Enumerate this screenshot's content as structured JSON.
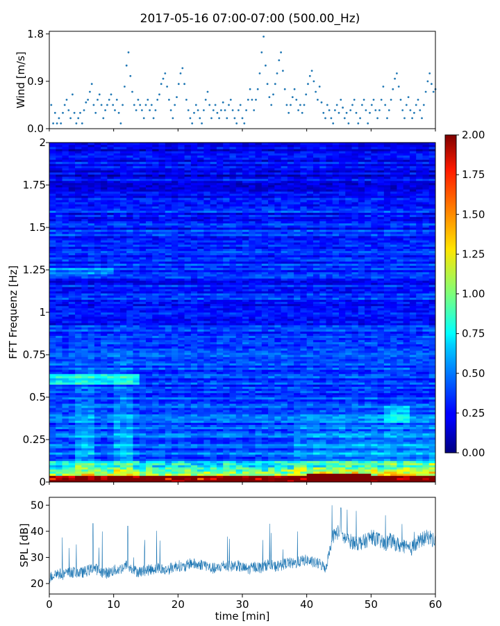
{
  "chart_data": [
    {
      "type": "scatter",
      "title": "2017-05-16 07:00-07:00 (500.00_Hz)",
      "xlabel": "",
      "ylabel": "Wind [m/s]",
      "xlim": [
        0,
        60
      ],
      "ylim": [
        0,
        1.85
      ],
      "yticks": [
        "0.0",
        "0.9",
        "1.8"
      ],
      "color": "#1f77b4",
      "points": [
        [
          0.3,
          0.45
        ],
        [
          0.6,
          0.1
        ],
        [
          0.9,
          0.3
        ],
        [
          1.2,
          0.1
        ],
        [
          1.5,
          0.2
        ],
        [
          1.8,
          0.1
        ],
        [
          2.1,
          0.3
        ],
        [
          2.4,
          0.45
        ],
        [
          2.7,
          0.55
        ],
        [
          3.0,
          0.35
        ],
        [
          3.3,
          0.2
        ],
        [
          3.6,
          0.65
        ],
        [
          3.9,
          0.3
        ],
        [
          4.2,
          0.1
        ],
        [
          4.5,
          0.2
        ],
        [
          4.8,
          0.3
        ],
        [
          5.1,
          0.1
        ],
        [
          5.4,
          0.35
        ],
        [
          5.7,
          0.5
        ],
        [
          6.0,
          0.55
        ],
        [
          6.3,
          0.7
        ],
        [
          6.6,
          0.85
        ],
        [
          6.9,
          0.45
        ],
        [
          7.2,
          0.3
        ],
        [
          7.5,
          0.55
        ],
        [
          7.8,
          0.65
        ],
        [
          8.1,
          0.45
        ],
        [
          8.4,
          0.2
        ],
        [
          8.7,
          0.35
        ],
        [
          9.0,
          0.45
        ],
        [
          9.3,
          0.55
        ],
        [
          9.6,
          0.65
        ],
        [
          9.9,
          0.45
        ],
        [
          10.2,
          0.35
        ],
        [
          10.5,
          0.55
        ],
        [
          10.8,
          0.3
        ],
        [
          11.1,
          0.1
        ],
        [
          11.4,
          0.45
        ],
        [
          11.7,
          0.8
        ],
        [
          12.0,
          1.2
        ],
        [
          12.3,
          1.45
        ],
        [
          12.6,
          1.0
        ],
        [
          12.9,
          0.7
        ],
        [
          13.2,
          0.45
        ],
        [
          13.5,
          0.35
        ],
        [
          13.8,
          0.55
        ],
        [
          14.1,
          0.45
        ],
        [
          14.4,
          0.35
        ],
        [
          14.7,
          0.2
        ],
        [
          15.0,
          0.45
        ],
        [
          15.3,
          0.55
        ],
        [
          15.6,
          0.35
        ],
        [
          15.9,
          0.45
        ],
        [
          16.2,
          0.2
        ],
        [
          16.5,
          0.35
        ],
        [
          16.8,
          0.55
        ],
        [
          17.1,
          0.65
        ],
        [
          17.4,
          0.85
        ],
        [
          17.7,
          0.95
        ],
        [
          18.0,
          1.05
        ],
        [
          18.3,
          0.8
        ],
        [
          18.6,
          0.55
        ],
        [
          18.9,
          0.35
        ],
        [
          19.2,
          0.2
        ],
        [
          19.5,
          0.45
        ],
        [
          19.8,
          0.6
        ],
        [
          20.1,
          0.85
        ],
        [
          20.4,
          1.05
        ],
        [
          20.7,
          1.15
        ],
        [
          21.0,
          0.85
        ],
        [
          21.3,
          0.55
        ],
        [
          21.6,
          0.35
        ],
        [
          21.9,
          0.2
        ],
        [
          22.2,
          0.1
        ],
        [
          22.5,
          0.3
        ],
        [
          22.8,
          0.45
        ],
        [
          23.1,
          0.35
        ],
        [
          23.4,
          0.2
        ],
        [
          23.7,
          0.1
        ],
        [
          24.0,
          0.35
        ],
        [
          24.3,
          0.55
        ],
        [
          24.6,
          0.7
        ],
        [
          24.9,
          0.45
        ],
        [
          25.2,
          0.2
        ],
        [
          25.5,
          0.35
        ],
        [
          25.8,
          0.45
        ],
        [
          26.1,
          0.3
        ],
        [
          26.4,
          0.2
        ],
        [
          26.7,
          0.35
        ],
        [
          27.0,
          0.5
        ],
        [
          27.3,
          0.35
        ],
        [
          27.6,
          0.2
        ],
        [
          27.9,
          0.45
        ],
        [
          28.2,
          0.55
        ],
        [
          28.5,
          0.35
        ],
        [
          28.8,
          0.2
        ],
        [
          29.1,
          0.1
        ],
        [
          29.4,
          0.35
        ],
        [
          29.7,
          0.45
        ],
        [
          30.0,
          0.2
        ],
        [
          30.3,
          0.1
        ],
        [
          30.6,
          0.35
        ],
        [
          30.9,
          0.55
        ],
        [
          31.2,
          0.75
        ],
        [
          31.5,
          0.55
        ],
        [
          31.8,
          0.35
        ],
        [
          32.1,
          0.55
        ],
        [
          32.4,
          0.75
        ],
        [
          32.7,
          1.05
        ],
        [
          33.0,
          1.45
        ],
        [
          33.3,
          1.75
        ],
        [
          33.6,
          1.2
        ],
        [
          33.9,
          0.85
        ],
        [
          34.2,
          0.6
        ],
        [
          34.5,
          0.45
        ],
        [
          34.8,
          0.65
        ],
        [
          35.1,
          0.85
        ],
        [
          35.4,
          1.05
        ],
        [
          35.7,
          1.3
        ],
        [
          36.0,
          1.45
        ],
        [
          36.3,
          1.1
        ],
        [
          36.6,
          0.75
        ],
        [
          36.9,
          0.45
        ],
        [
          37.2,
          0.3
        ],
        [
          37.5,
          0.45
        ],
        [
          37.8,
          0.6
        ],
        [
          38.1,
          0.75
        ],
        [
          38.4,
          0.55
        ],
        [
          38.7,
          0.35
        ],
        [
          39.0,
          0.45
        ],
        [
          39.3,
          0.3
        ],
        [
          39.6,
          0.45
        ],
        [
          39.9,
          0.65
        ],
        [
          40.2,
          0.85
        ],
        [
          40.5,
          1.0
        ],
        [
          40.8,
          1.1
        ],
        [
          41.1,
          0.9
        ],
        [
          41.4,
          0.7
        ],
        [
          41.7,
          0.55
        ],
        [
          42.0,
          0.8
        ],
        [
          42.3,
          0.5
        ],
        [
          42.6,
          0.3
        ],
        [
          42.9,
          0.2
        ],
        [
          43.2,
          0.45
        ],
        [
          43.5,
          0.35
        ],
        [
          43.8,
          0.2
        ],
        [
          44.1,
          0.1
        ],
        [
          44.4,
          0.35
        ],
        [
          44.7,
          0.45
        ],
        [
          45.0,
          0.3
        ],
        [
          45.3,
          0.55
        ],
        [
          45.6,
          0.4
        ],
        [
          45.9,
          0.2
        ],
        [
          46.2,
          0.3
        ],
        [
          46.5,
          0.1
        ],
        [
          46.8,
          0.35
        ],
        [
          47.1,
          0.45
        ],
        [
          47.4,
          0.55
        ],
        [
          47.7,
          0.3
        ],
        [
          48.0,
          0.1
        ],
        [
          48.3,
          0.2
        ],
        [
          48.6,
          0.45
        ],
        [
          48.9,
          0.55
        ],
        [
          49.2,
          0.35
        ],
        [
          49.5,
          0.1
        ],
        [
          49.8,
          0.3
        ],
        [
          50.1,
          0.45
        ],
        [
          50.4,
          0.55
        ],
        [
          50.7,
          0.35
        ],
        [
          51.0,
          0.2
        ],
        [
          51.3,
          0.35
        ],
        [
          51.6,
          0.55
        ],
        [
          51.9,
          0.8
        ],
        [
          52.2,
          0.45
        ],
        [
          52.5,
          0.2
        ],
        [
          52.8,
          0.35
        ],
        [
          53.1,
          0.55
        ],
        [
          53.4,
          0.75
        ],
        [
          53.7,
          0.95
        ],
        [
          54.0,
          1.05
        ],
        [
          54.3,
          0.8
        ],
        [
          54.6,
          0.55
        ],
        [
          54.9,
          0.35
        ],
        [
          55.2,
          0.2
        ],
        [
          55.5,
          0.45
        ],
        [
          55.8,
          0.6
        ],
        [
          56.1,
          0.35
        ],
        [
          56.4,
          0.2
        ],
        [
          56.7,
          0.3
        ],
        [
          57.0,
          0.45
        ],
        [
          57.3,
          0.55
        ],
        [
          57.6,
          0.35
        ],
        [
          57.9,
          0.2
        ],
        [
          58.2,
          0.45
        ],
        [
          58.5,
          0.7
        ],
        [
          58.8,
          0.9
        ],
        [
          59.1,
          1.05
        ],
        [
          59.4,
          0.85
        ],
        [
          59.7,
          0.7
        ],
        [
          60.0,
          0.75
        ]
      ]
    },
    {
      "type": "heatmap",
      "xlabel": "",
      "ylabel": "FFT Frequenz [Hz]",
      "xlim": [
        0,
        60
      ],
      "ylim": [
        0,
        2
      ],
      "yticks": [
        "0",
        "0.25",
        "0.5",
        "0.75",
        "1",
        "1.25",
        "1.5",
        "1.75",
        "2"
      ],
      "colormap": "jet",
      "colorbar": {
        "min": 0.0,
        "max": 2.0,
        "ticks": [
          "0.00",
          "0.25",
          "0.50",
          "0.75",
          "1.00",
          "1.25",
          "1.50",
          "1.75",
          "2.00"
        ]
      },
      "time_bins": 60,
      "freq_bins": 160
    },
    {
      "type": "line",
      "xlabel": "time [min]",
      "ylabel": "SPL [dB]",
      "xlim": [
        0,
        60
      ],
      "ylim": [
        16,
        53
      ],
      "xticks": [
        "0",
        "10",
        "20",
        "30",
        "40",
        "50",
        "60"
      ],
      "yticks": [
        "20",
        "30",
        "40",
        "50"
      ],
      "color": "#1f77b4",
      "series": [
        {
          "x": [
            0,
            1,
            2,
            3,
            4,
            5,
            6,
            7,
            8,
            9,
            10,
            11,
            12,
            13,
            14,
            15,
            16,
            17,
            18,
            19,
            20,
            21,
            22,
            23,
            24,
            25,
            26,
            27,
            28,
            29,
            30,
            31,
            32,
            33,
            34,
            35,
            36,
            37,
            38,
            39,
            40,
            41,
            42,
            43,
            44,
            45,
            46,
            47,
            48,
            49,
            50,
            51,
            52,
            53,
            54,
            55,
            56,
            57,
            58,
            59,
            60
          ],
          "y": [
            22,
            24,
            23.5,
            24,
            24.5,
            24,
            25,
            26,
            24.5,
            24,
            25,
            25.5,
            27,
            25,
            24.5,
            25,
            25.5,
            26,
            25,
            26,
            27,
            26,
            28,
            27,
            27.5,
            26,
            25.5,
            27,
            26.5,
            27,
            26,
            25.5,
            26.5,
            26,
            27.5,
            26.5,
            27,
            28,
            27.5,
            28.5,
            29,
            28,
            27.5,
            26,
            38,
            40,
            37,
            36,
            35.5,
            36,
            38,
            37,
            35,
            36.5,
            35,
            34,
            33,
            35,
            37,
            38,
            36
          ]
        }
      ]
    }
  ]
}
